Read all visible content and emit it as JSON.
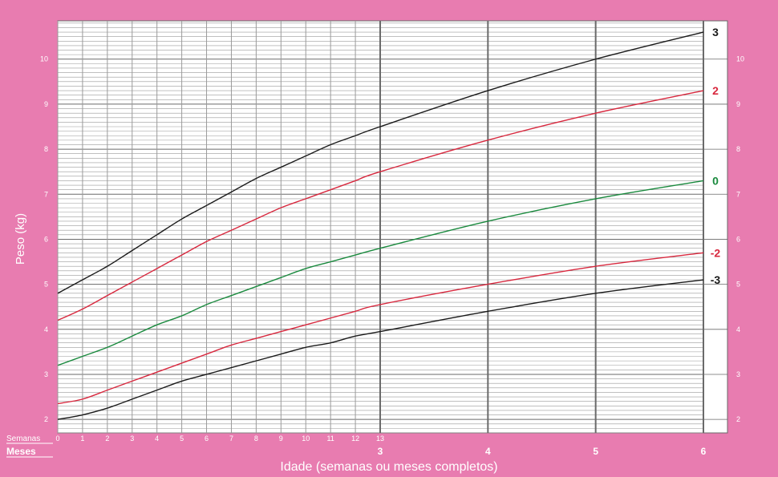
{
  "colors": {
    "background": "#e87cb0",
    "plot_bg": "#ffffff",
    "grid_minor": "#9a9a9a",
    "grid_major": "#6a6a6a",
    "black": "#1a1a1a",
    "red": "#d8283e",
    "green": "#1a8a3e",
    "label_white": "#ffffff"
  },
  "chart_data": {
    "type": "line",
    "title": "",
    "ylabel": "Peso (kg)",
    "xlabel": "Idade (semanas ou meses completos)",
    "ylim": [
      1.7,
      10.85
    ],
    "xlim_weeks": [
      0,
      26
    ],
    "grid": true,
    "legend": "right-end line labels",
    "week_axis": {
      "label": "Semanas",
      "ticks": [
        0,
        1,
        2,
        3,
        4,
        5,
        6,
        7,
        8,
        9,
        10,
        11,
        12,
        13
      ],
      "tick_labels": [
        "0",
        "1",
        "2",
        "3",
        "4",
        "5",
        "6",
        "7",
        "8",
        "9",
        "10",
        "11",
        "12",
        "13"
      ]
    },
    "month_axis": {
      "label": "Meses",
      "ticks": [
        3,
        4,
        5,
        6
      ],
      "tick_labels": [
        "3",
        "4",
        "5",
        "6"
      ]
    },
    "y_ticks": [
      2,
      3,
      4,
      5,
      6,
      7,
      8,
      9,
      10
    ],
    "y_tick_labels": [
      "2",
      "3",
      "4",
      "5",
      "6",
      "7",
      "8",
      "9",
      "10"
    ],
    "x_weeks": [
      0,
      1,
      2,
      3,
      4,
      5,
      6,
      7,
      8,
      9,
      10,
      11,
      12,
      13,
      17.33,
      21.67,
      26
    ],
    "series": [
      {
        "name": "3",
        "color": "black",
        "values": [
          4.8,
          5.1,
          5.4,
          5.75,
          6.1,
          6.45,
          6.75,
          7.05,
          7.35,
          7.6,
          7.85,
          8.1,
          8.3,
          8.5,
          9.3,
          10.0,
          10.6
        ]
      },
      {
        "name": "2",
        "color": "red",
        "values": [
          4.2,
          4.45,
          4.75,
          5.05,
          5.35,
          5.65,
          5.95,
          6.2,
          6.45,
          6.7,
          6.9,
          7.1,
          7.3,
          7.5,
          8.2,
          8.8,
          9.3
        ]
      },
      {
        "name": "0",
        "color": "green",
        "values": [
          3.2,
          3.4,
          3.6,
          3.85,
          4.1,
          4.3,
          4.55,
          4.75,
          4.95,
          5.15,
          5.35,
          5.5,
          5.65,
          5.8,
          6.4,
          6.9,
          7.3
        ]
      },
      {
        "name": "-2",
        "color": "red",
        "values": [
          2.35,
          2.45,
          2.65,
          2.85,
          3.05,
          3.25,
          3.45,
          3.65,
          3.8,
          3.95,
          4.1,
          4.25,
          4.4,
          4.55,
          5.0,
          5.4,
          5.7
        ]
      },
      {
        "name": "-3",
        "color": "black",
        "values": [
          2.0,
          2.1,
          2.25,
          2.45,
          2.65,
          2.85,
          3.0,
          3.15,
          3.3,
          3.45,
          3.6,
          3.7,
          3.85,
          3.95,
          4.4,
          4.8,
          5.1
        ]
      }
    ]
  }
}
